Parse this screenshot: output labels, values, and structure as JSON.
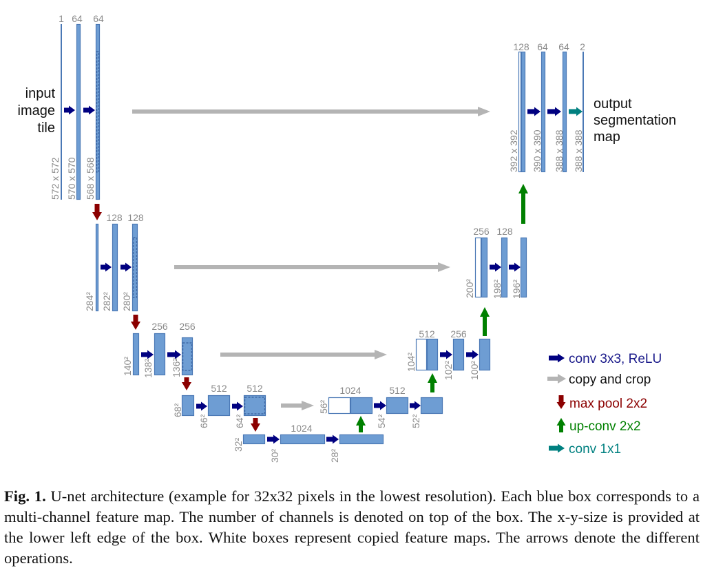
{
  "input_label": [
    "input",
    "image",
    "tile"
  ],
  "output_label": [
    "output",
    "segmentation",
    "map"
  ],
  "channel_labels": [
    "1",
    "64",
    "64",
    "128",
    "128",
    "256",
    "256",
    "512",
    "512",
    "1024",
    "1024",
    "512",
    "512",
    "256",
    "256",
    "128",
    "128",
    "64",
    "64",
    "2"
  ],
  "size_labels": [
    "572 x 572",
    "570 x 570",
    "568 x 568",
    "284²",
    "282²",
    "280²",
    "140²",
    "138²",
    "136²",
    "68²",
    "66²",
    "64²",
    "32²",
    "30²",
    "28²",
    "56²",
    "54²",
    "52²",
    "104²",
    "102²",
    "100²",
    "200²",
    "198²",
    "196²",
    "392 x 392",
    "390 x 390",
    "388 x 388",
    "388 x 388"
  ],
  "legend": [
    {
      "label": "conv 3x3, ReLU",
      "icon": "right-arrow",
      "color": "#000080",
      "text_color": "#1a1a8a"
    },
    {
      "label": "copy and crop",
      "icon": "right-arrow",
      "color": "#b4b4b4",
      "text_color": "#111111"
    },
    {
      "label": "max pool 2x2",
      "icon": "down-arrow",
      "color": "#8b0000",
      "text_color": "#8b0000"
    },
    {
      "label": "up-conv 2x2",
      "icon": "up-arrow",
      "color": "#008000",
      "text_color": "#008000"
    },
    {
      "label": "conv 1x1",
      "icon": "right-arrow",
      "color": "#008080",
      "text_color": "#008080"
    }
  ],
  "colors": {
    "box_fill": "#6e9dd3",
    "box_stroke": "#4a78b5",
    "label_gray": "#8a8a8a"
  },
  "caption": {
    "figure_label": "Fig. 1.",
    "text": "U-net architecture (example for 32x32 pixels in the lowest resolution). Each blue box corresponds to a multi-channel feature map. The number of channels is denoted on top of the box. The x-y-size is provided at the lower left edge of the box. White boxes represent copied feature maps. The arrows denote the different operations."
  }
}
